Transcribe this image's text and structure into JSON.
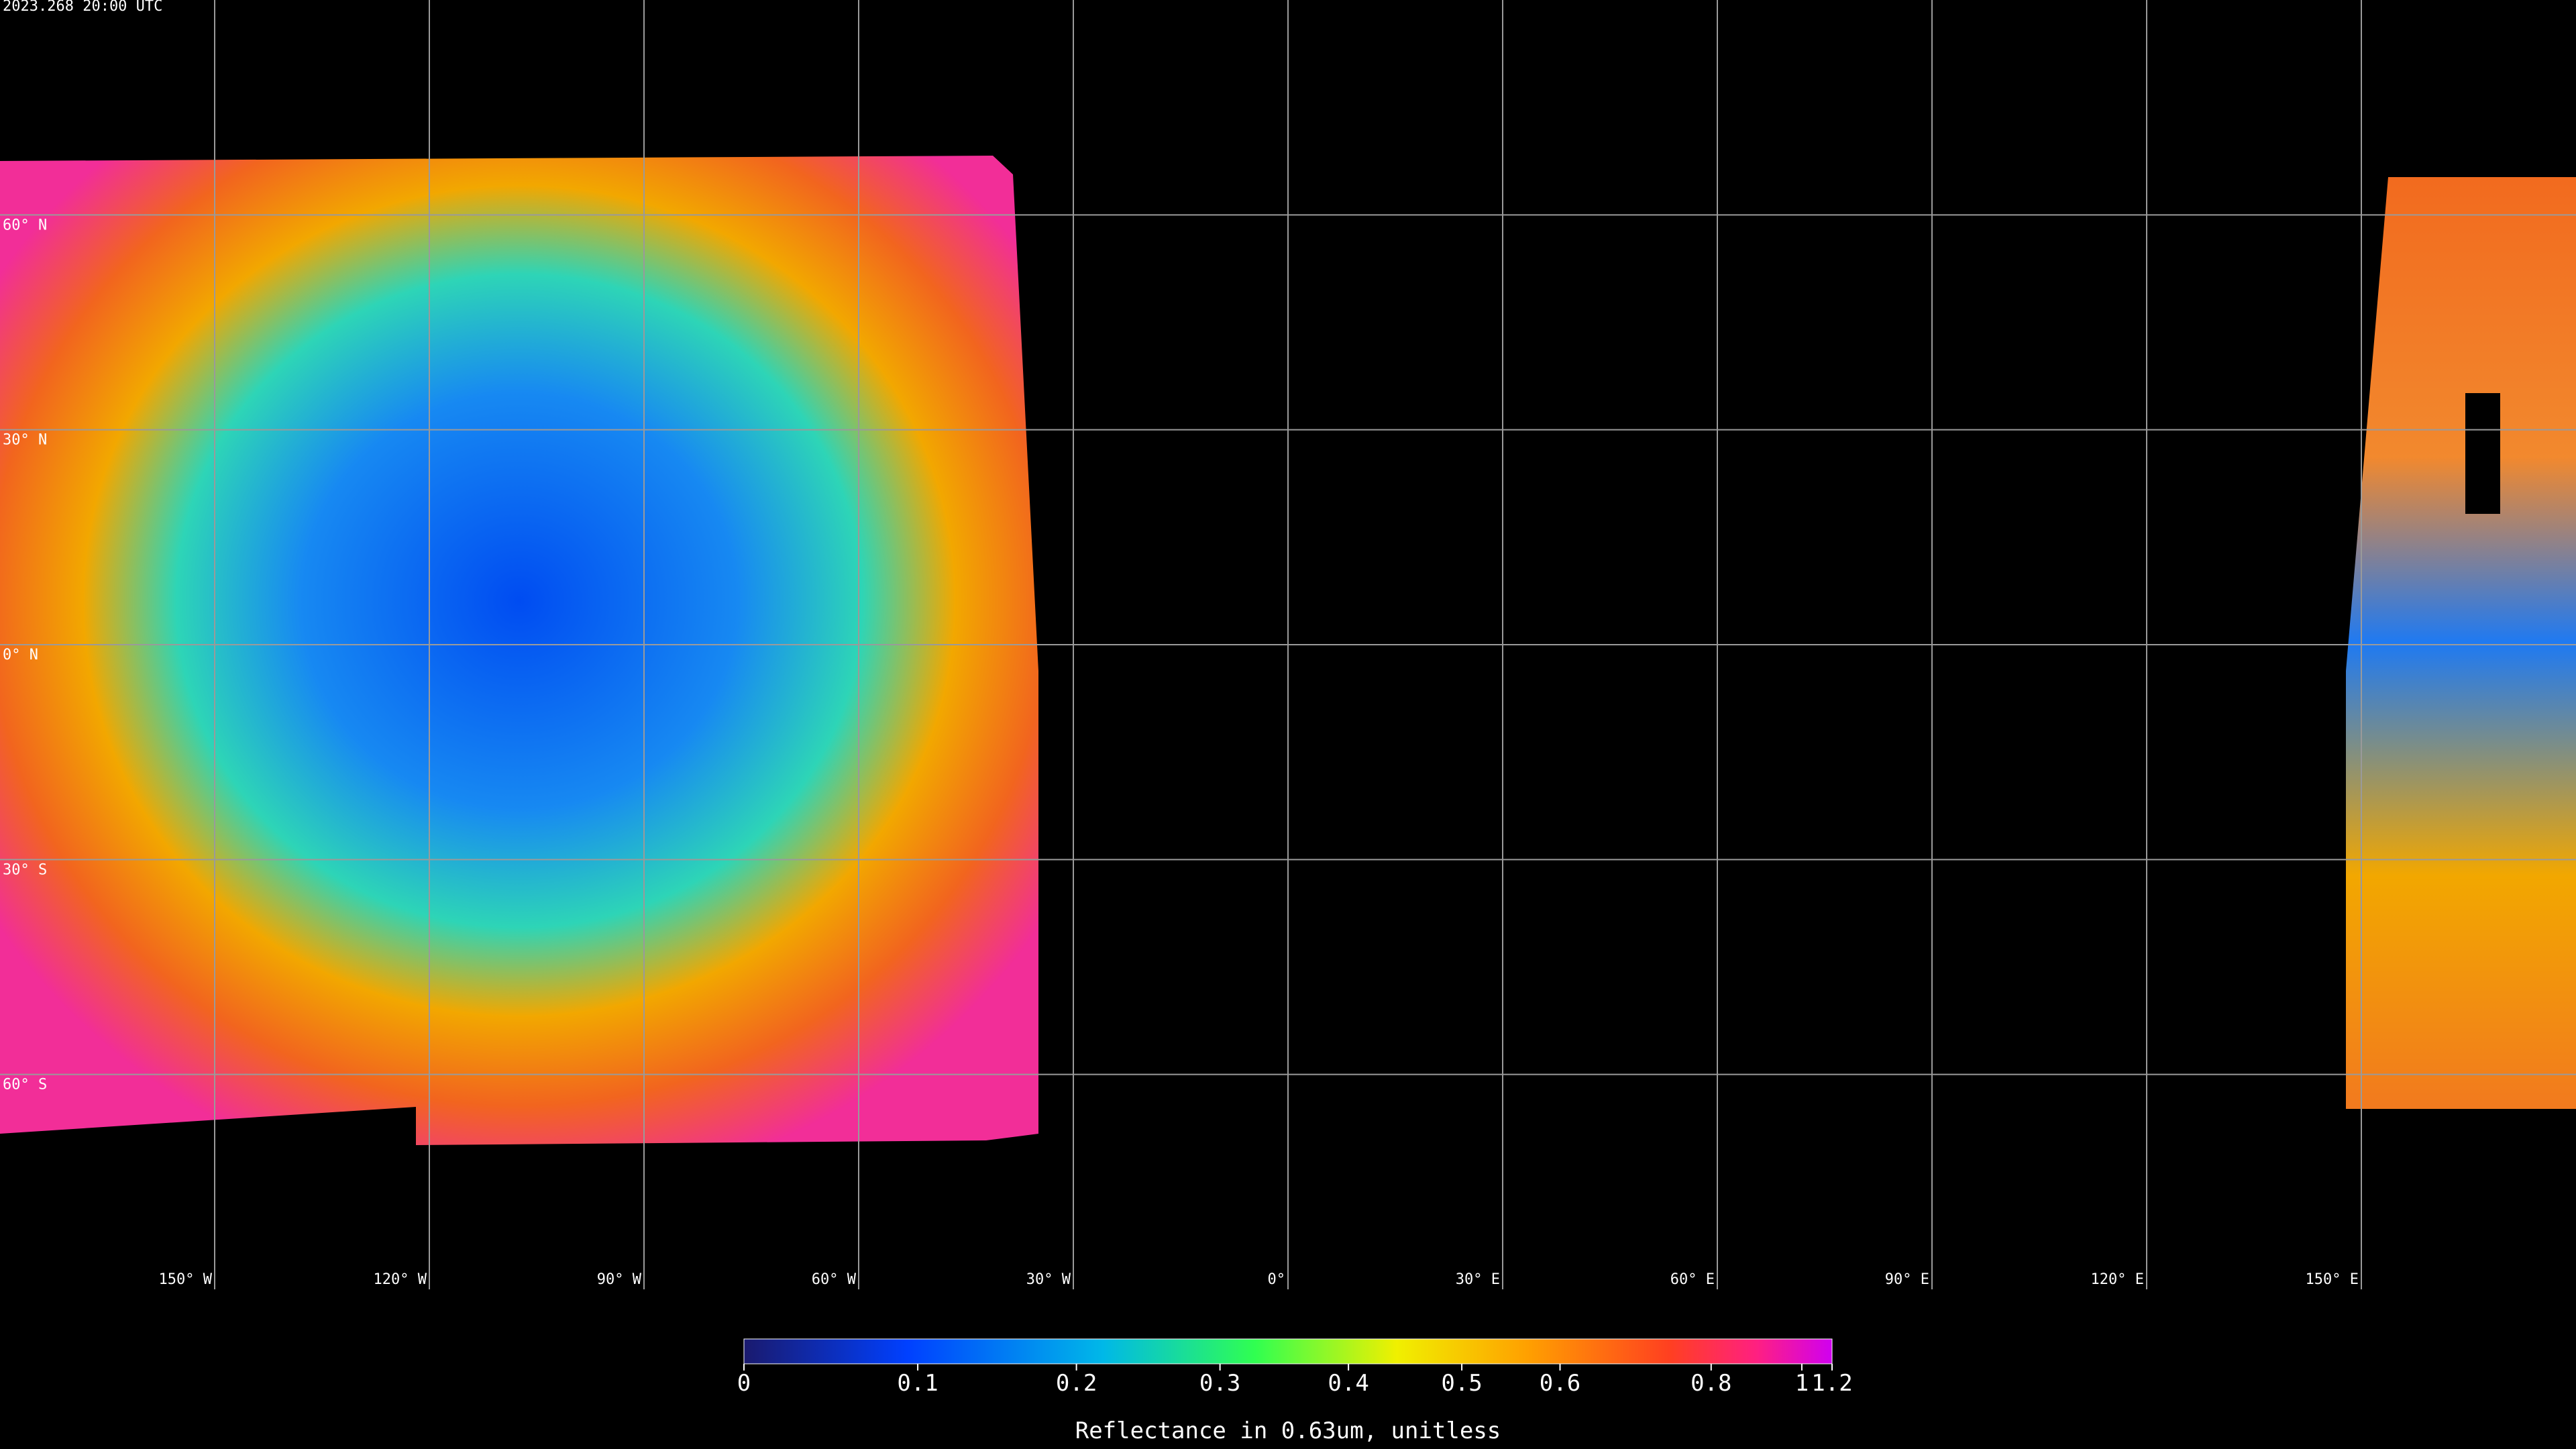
{
  "map": {
    "title": "2023.268 20:00 UTC",
    "latitude_labels": [
      "60° N",
      "30° N",
      "0° N",
      "30° S",
      "60° S"
    ],
    "longitude_labels": [
      "150° W",
      "120° W",
      "90° W",
      "60° W",
      "30° W",
      "0°",
      "30° E",
      "60° E",
      "90° E",
      "120° E",
      "150° E"
    ],
    "colorbar": {
      "ticks": [
        0,
        0.1,
        0.2,
        0.3,
        0.4,
        0.5,
        0.6,
        0.8,
        1,
        1.2
      ],
      "label": "Reflectance in 0.63um, unitless"
    }
  }
}
